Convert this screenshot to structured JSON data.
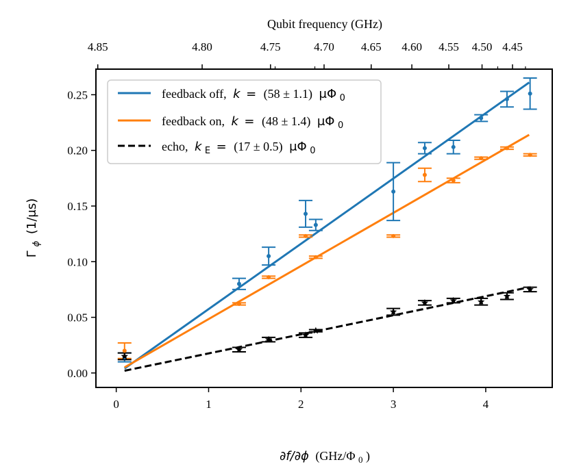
{
  "chart_data": {
    "type": "scatter",
    "title": "",
    "xlabel": "∂f/∂ϕ (GHz/Φ0)",
    "xlabel_parts": [
      "∂f/∂ϕ",
      "(GHz/Φ",
      "0",
      ")"
    ],
    "ylabel": "Γϕ (1/μs)",
    "ylabel_parts": [
      "Γ",
      "ϕ",
      "(1/μs)"
    ],
    "x2label": "Qubit frequency (GHz)",
    "xlim": [
      -0.22,
      4.72
    ],
    "ylim": [
      -0.013,
      0.273
    ],
    "xticks": [
      0,
      1,
      2,
      3,
      4
    ],
    "yticks": [
      0.0,
      0.05,
      0.1,
      0.15,
      0.2,
      0.25
    ],
    "ytick_labels": [
      "0.00",
      "0.05",
      "0.10",
      "0.15",
      "0.20",
      "0.25"
    ],
    "top_ticks": [
      {
        "label": "4.85",
        "x": -0.2
      },
      {
        "label": "4.80",
        "x": 0.93
      },
      {
        "label": "4.75",
        "x": 1.67
      },
      {
        "label": "4.70",
        "x": 2.25
      },
      {
        "label": "4.65",
        "x": 2.76
      },
      {
        "label": "4.60",
        "x": 3.2
      },
      {
        "label": "4.55",
        "x": 3.6
      },
      {
        "label": "4.50",
        "x": 3.96
      },
      {
        "label": "4.45",
        "x": 4.29
      }
    ],
    "top_minor_ticks": [
      1.72,
      2.15,
      4.13,
      4.43
    ],
    "legend_position": "upper-left",
    "series": [
      {
        "name": "feedback off",
        "legend": {
          "prefix": "feedback off,",
          "symbol": "k",
          "sub": "",
          "equals": "=",
          "value": "(58 ± 1.1)",
          "unit": "μΦ",
          "unit_sub": "0"
        },
        "color": "#1f77b4",
        "line_style": "solid",
        "marker": "dot",
        "fit": {
          "x": [
            0.09,
            4.47
          ],
          "y": [
            0.004,
            0.261
          ]
        },
        "points": [
          {
            "x": 0.09,
            "y": 0.014,
            "err": 0.004
          },
          {
            "x": 1.33,
            "y": 0.08,
            "err": 0.005
          },
          {
            "x": 1.65,
            "y": 0.105,
            "err": 0.008
          },
          {
            "x": 2.05,
            "y": 0.143,
            "err": 0.012
          },
          {
            "x": 2.16,
            "y": 0.133,
            "err": 0.005
          },
          {
            "x": 3.0,
            "y": 0.163,
            "err": 0.026
          },
          {
            "x": 3.34,
            "y": 0.202,
            "err": 0.005
          },
          {
            "x": 3.65,
            "y": 0.203,
            "err": 0.006
          },
          {
            "x": 3.95,
            "y": 0.229,
            "err": 0.003
          },
          {
            "x": 4.23,
            "y": 0.246,
            "err": 0.007
          },
          {
            "x": 4.48,
            "y": 0.251,
            "err": 0.014
          }
        ]
      },
      {
        "name": "feedback on",
        "legend": {
          "prefix": "feedback on,",
          "symbol": "k",
          "sub": "",
          "equals": "=",
          "value": "(48 ± 1.4)",
          "unit": "μΦ",
          "unit_sub": "0"
        },
        "color": "#ff7f0e",
        "line_style": "solid",
        "marker": "dot",
        "fit": {
          "x": [
            0.09,
            4.47
          ],
          "y": [
            0.005,
            0.214
          ]
        },
        "points": [
          {
            "x": 0.09,
            "y": 0.02,
            "err": 0.007
          },
          {
            "x": 1.33,
            "y": 0.062,
            "err": 0.001
          },
          {
            "x": 1.65,
            "y": 0.086,
            "err": 0.001
          },
          {
            "x": 2.05,
            "y": 0.123,
            "err": 0.001
          },
          {
            "x": 2.16,
            "y": 0.104,
            "err": 0.001
          },
          {
            "x": 3.0,
            "y": 0.123,
            "err": 0.001
          },
          {
            "x": 3.34,
            "y": 0.178,
            "err": 0.006
          },
          {
            "x": 3.65,
            "y": 0.173,
            "err": 0.002
          },
          {
            "x": 3.95,
            "y": 0.193,
            "err": 0.001
          },
          {
            "x": 4.23,
            "y": 0.202,
            "err": 0.001
          },
          {
            "x": 4.48,
            "y": 0.196,
            "err": 0.001
          }
        ]
      },
      {
        "name": "echo",
        "legend": {
          "prefix": "echo,",
          "symbol": "k",
          "sub": "E",
          "equals": "=",
          "value": "(17 ± 0.5)",
          "unit": "μΦ",
          "unit_sub": "0"
        },
        "color": "#000000",
        "line_style": "dashed",
        "marker": "star",
        "fit": {
          "x": [
            0.09,
            4.47
          ],
          "y": [
            0.002,
            0.077
          ]
        },
        "points": [
          {
            "x": 0.09,
            "y": 0.015,
            "err": 0.003
          },
          {
            "x": 1.33,
            "y": 0.021,
            "err": 0.002
          },
          {
            "x": 1.65,
            "y": 0.03,
            "err": 0.002
          },
          {
            "x": 2.05,
            "y": 0.034,
            "err": 0.002
          },
          {
            "x": 2.16,
            "y": 0.038,
            "err": 0.001
          },
          {
            "x": 3.0,
            "y": 0.055,
            "err": 0.003
          },
          {
            "x": 3.34,
            "y": 0.063,
            "err": 0.002
          },
          {
            "x": 3.65,
            "y": 0.065,
            "err": 0.002
          },
          {
            "x": 3.95,
            "y": 0.064,
            "err": 0.003
          },
          {
            "x": 4.23,
            "y": 0.069,
            "err": 0.003
          },
          {
            "x": 4.48,
            "y": 0.075,
            "err": 0.002
          }
        ]
      }
    ]
  }
}
